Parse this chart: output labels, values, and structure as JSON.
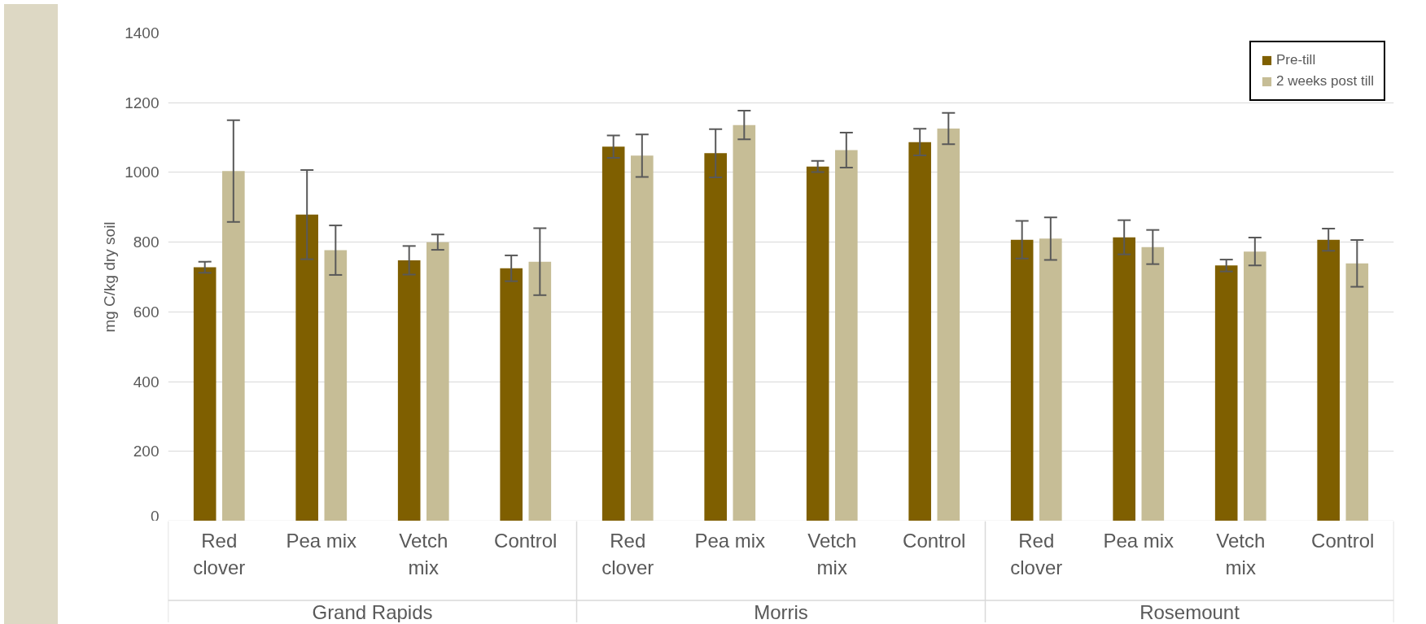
{
  "chart_data": {
    "type": "bar",
    "ylabel": "mg C/kg dry soil",
    "categories": [
      "Red clover",
      "Pea mix",
      "Vetch mix",
      "Control",
      "Red clover",
      "Pea mix",
      "Vetch mix",
      "Control",
      "Red clover",
      "Pea mix",
      "Vetch mix",
      "Control"
    ],
    "annotations": [
      "Grand Rapids",
      "Morris",
      "Rosemount"
    ],
    "series": [
      {
        "name": "Pre-till",
        "color": "#7f5f00",
        "values": [
          728,
          879,
          748,
          725,
          1074,
          1055,
          1017,
          1087,
          807,
          814,
          733,
          807
        ],
        "errors": [
          16,
          128,
          41,
          37,
          32,
          69,
          16,
          38,
          54,
          49,
          17,
          32
        ]
      },
      {
        "name": "2 weeks post till",
        "color": "#c6bd96",
        "values": [
          1004,
          777,
          800,
          744,
          1048,
          1136,
          1064,
          1126,
          810,
          786,
          773,
          739
        ],
        "errors": [
          146,
          71,
          22,
          96,
          61,
          41,
          50,
          45,
          61,
          49,
          40,
          67
        ]
      }
    ],
    "ylim": [
      0,
      1400
    ],
    "yticks": [
      0,
      200,
      400,
      600,
      800,
      1000,
      1200,
      1400
    ],
    "grid": "y",
    "legend": "top right"
  }
}
